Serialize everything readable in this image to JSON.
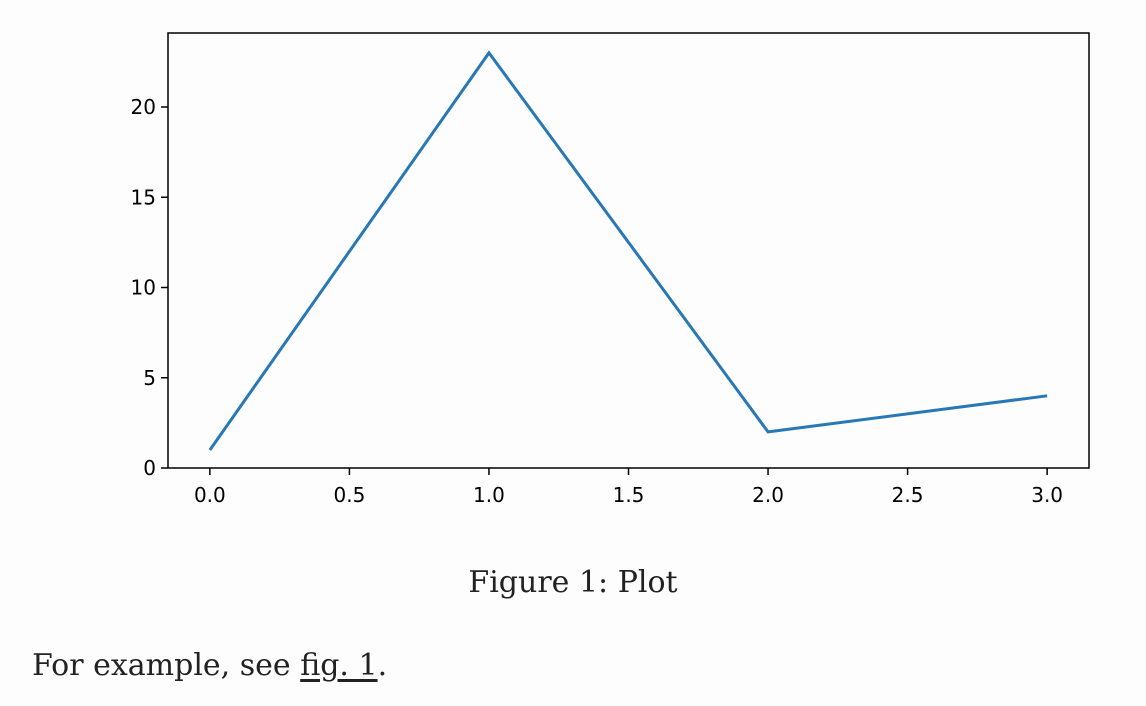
{
  "figure": {
    "caption": "Figure 1: Plot"
  },
  "paragraph": {
    "before": "For example, see ",
    "link_text": "fig. 1",
    "after": "."
  },
  "colors": {
    "line": "#2878b5",
    "axis": "#000000"
  },
  "chart_data": {
    "type": "line",
    "x": [
      0,
      1,
      2,
      3
    ],
    "series": [
      {
        "values": [
          1,
          23,
          2,
          4
        ]
      }
    ],
    "xlim": [
      -0.15,
      3.15
    ],
    "ylim": [
      0,
      24.1
    ],
    "xticks": [
      "0.0",
      "0.5",
      "1.0",
      "1.5",
      "2.0",
      "2.5",
      "3.0"
    ],
    "yticks": [
      "0",
      "5",
      "10",
      "15",
      "20"
    ],
    "grid": false
  }
}
